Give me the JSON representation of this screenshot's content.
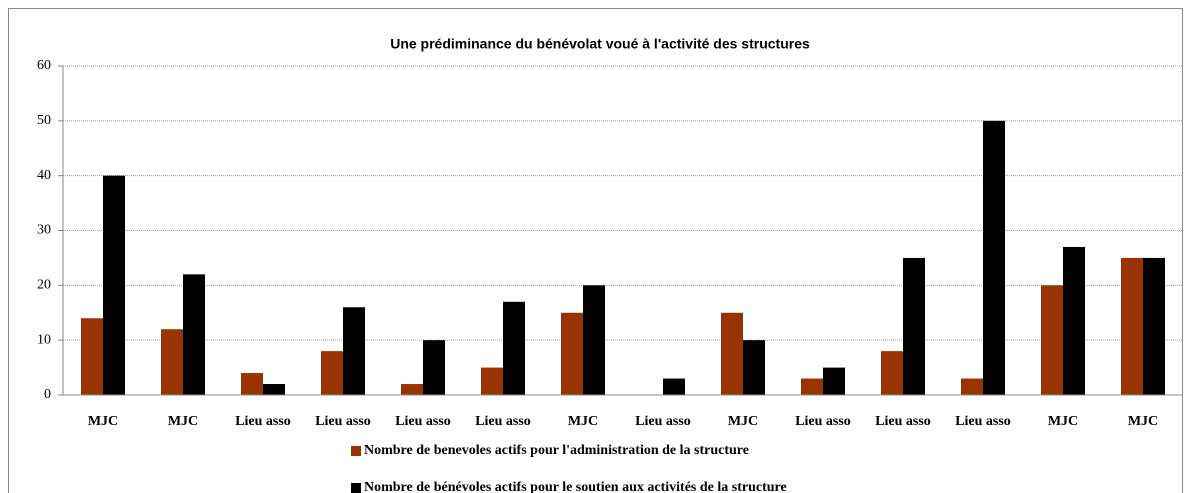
{
  "chart_data": {
    "type": "bar",
    "title": "Une prédiminance du bénévolat voué à l'activité des structures",
    "categories": [
      "MJC",
      "MJC",
      "Lieu asso",
      "Lieu asso",
      "Lieu asso",
      "Lieu asso",
      "MJC",
      "Lieu asso",
      "MJC",
      "Lieu asso",
      "Lieu asso",
      "Lieu asso",
      "MJC",
      "MJC"
    ],
    "series": [
      {
        "name": "Nombre de benevoles actifs pour l'administration de la structure",
        "color": "#993300",
        "values": [
          14,
          12,
          4,
          8,
          2,
          5,
          15,
          0,
          15,
          3,
          8,
          3,
          20,
          25
        ]
      },
      {
        "name": "Nombre de bénévoles actifs pour le soutien aux activités de la structure",
        "color": "#000000",
        "values": [
          40,
          22,
          2,
          16,
          10,
          17,
          20,
          3,
          10,
          5,
          25,
          50,
          27,
          25
        ]
      }
    ],
    "ylim": [
      0,
      60
    ],
    "yticks": [
      0,
      10,
      20,
      30,
      40,
      50,
      60
    ],
    "grid": true,
    "legend": "bottom"
  }
}
